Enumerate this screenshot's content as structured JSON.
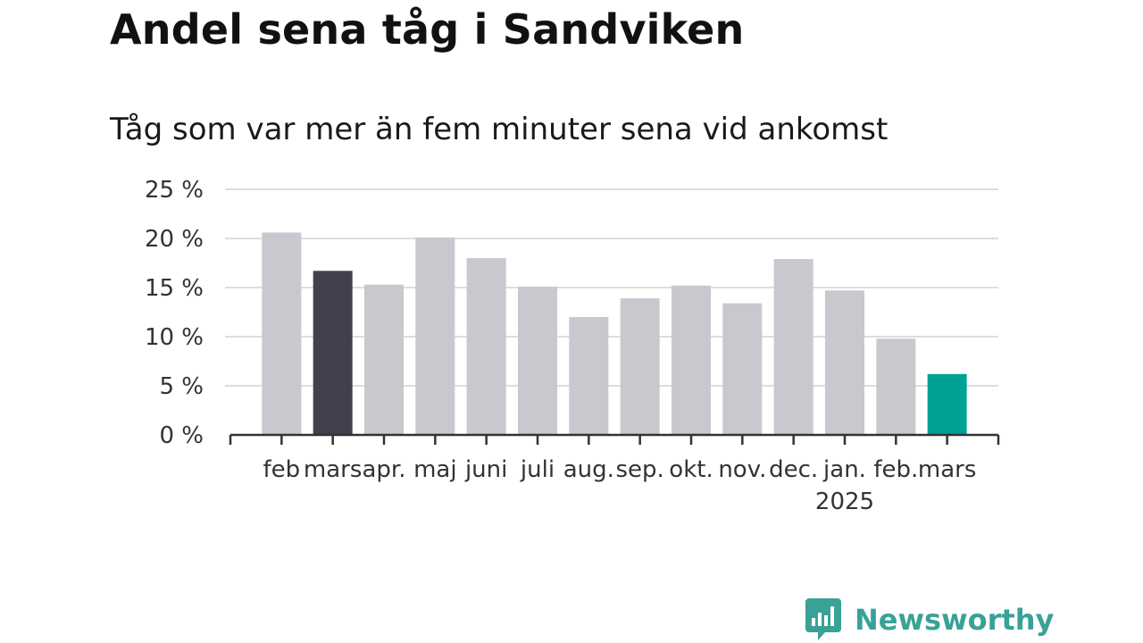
{
  "chart_data": {
    "type": "bar",
    "title": "Andel sena tåg i Sandviken",
    "subtitle": "Tåg som var mer än fem minuter sena vid ankomst",
    "categories": [
      "feb",
      "mars",
      "apr.",
      "maj",
      "juni",
      "juli",
      "aug.",
      "sep.",
      "okt.",
      "nov.",
      "dec.",
      "jan.",
      "feb.",
      "mars"
    ],
    "year_label": "2025",
    "year_label_under_category": "jan.",
    "values": [
      20.6,
      16.7,
      15.3,
      20.1,
      18.0,
      15.1,
      12.0,
      13.9,
      15.2,
      13.4,
      17.9,
      14.7,
      9.8,
      6.2
    ],
    "bar_colors": [
      "#c8c8cf",
      "#42404e",
      "#c8c8cf",
      "#c8c8cf",
      "#c8c8cf",
      "#c8c8cf",
      "#c8c8cf",
      "#c8c8cf",
      "#c8c8cf",
      "#c8c8cf",
      "#c8c8cf",
      "#c8c8cf",
      "#c8c8cf",
      "#00a195"
    ],
    "ylim": [
      0,
      25
    ],
    "yticks": [
      0,
      5,
      10,
      15,
      20,
      25
    ],
    "ytick_suffix": " %",
    "grid": true,
    "legend": false,
    "xlabel": "",
    "ylabel": ""
  },
  "branding": {
    "name": "Newsworthy",
    "icon": "newsworthy-logo-icon",
    "color": "#3aa197"
  }
}
